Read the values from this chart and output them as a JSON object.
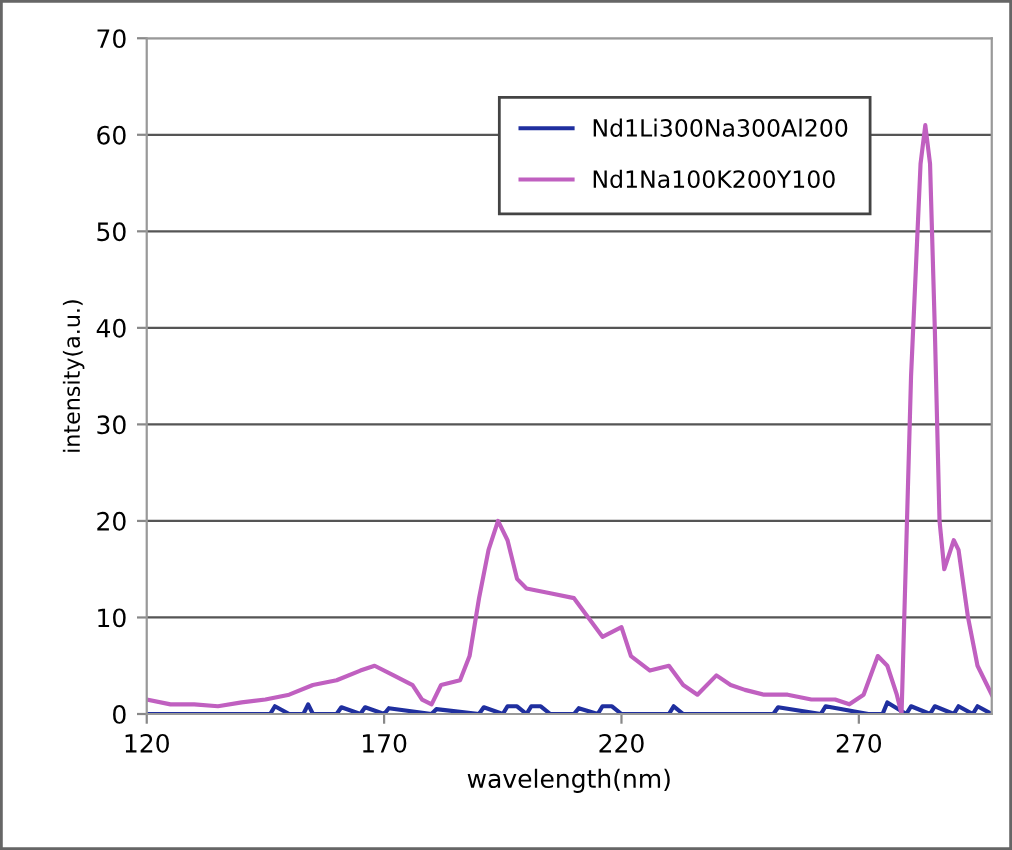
{
  "chart_data": {
    "type": "line",
    "xlabel": "wavelength(nm)",
    "ylabel": "intensity(a.u.)",
    "xlim": [
      120,
      298
    ],
    "xticks": [
      120,
      170,
      220,
      270
    ],
    "ylim": [
      0,
      70
    ],
    "yticks": [
      0,
      10,
      20,
      30,
      40,
      50,
      60,
      70
    ],
    "grid": "y",
    "legend": "top right",
    "marker": "none",
    "line_style": "solid",
    "series": [
      {
        "name": "Nd1Li300Na300Al200",
        "color": "#1f2f9f",
        "x": [
          120,
          140,
          146,
          147,
          150,
          153,
          154,
          155,
          160,
          161,
          165,
          166,
          170,
          171,
          180,
          181,
          190,
          191,
          195,
          196,
          198,
          200,
          201,
          203,
          205,
          210,
          211,
          215,
          216,
          218,
          220,
          230,
          231,
          233,
          245,
          252,
          253,
          262,
          263,
          272,
          275,
          276,
          280,
          281,
          285,
          286,
          290,
          291,
          294,
          295,
          298
        ],
        "values": [
          0,
          0,
          0,
          0.8,
          0,
          0,
          1,
          0,
          0,
          0.7,
          0,
          0.7,
          0,
          0.6,
          0,
          0.5,
          0,
          0.7,
          0,
          0.8,
          0.8,
          0,
          0.8,
          0.8,
          0,
          0,
          0.6,
          0,
          0.8,
          0.8,
          0,
          0,
          0.8,
          0,
          0,
          0,
          0.7,
          0,
          0.8,
          0,
          0,
          1.2,
          0,
          0.8,
          0,
          0.8,
          0,
          0.8,
          0,
          0.8,
          0
        ]
      },
      {
        "name": "Nd1Na100K200Y100",
        "color": "#c060c0",
        "x": [
          120,
          125,
          130,
          135,
          140,
          145,
          150,
          155,
          160,
          165,
          168,
          172,
          176,
          178,
          180,
          182,
          186,
          188,
          190,
          192,
          194,
          196,
          198,
          200,
          205,
          210,
          213,
          216,
          220,
          222,
          226,
          230,
          233,
          236,
          240,
          243,
          246,
          250,
          255,
          260,
          265,
          268,
          271,
          274,
          276,
          278,
          279,
          281,
          283,
          284,
          285,
          286,
          287,
          288,
          290,
          291,
          293,
          295,
          297,
          298
        ],
        "values": [
          1.5,
          1,
          1,
          0.8,
          1.2,
          1.5,
          2,
          3,
          3.5,
          4.5,
          5,
          4,
          3,
          1.5,
          1,
          3,
          3.5,
          6,
          12,
          17,
          20,
          18,
          14,
          13,
          12.5,
          12,
          10,
          8,
          9,
          6,
          4.5,
          5,
          3,
          2,
          4,
          3,
          2.5,
          2,
          2,
          1.5,
          1.5,
          1,
          2,
          6,
          5,
          2,
          0,
          35,
          57,
          61,
          57,
          40,
          20,
          15,
          18,
          17,
          10,
          5,
          3,
          2
        ]
      }
    ]
  }
}
